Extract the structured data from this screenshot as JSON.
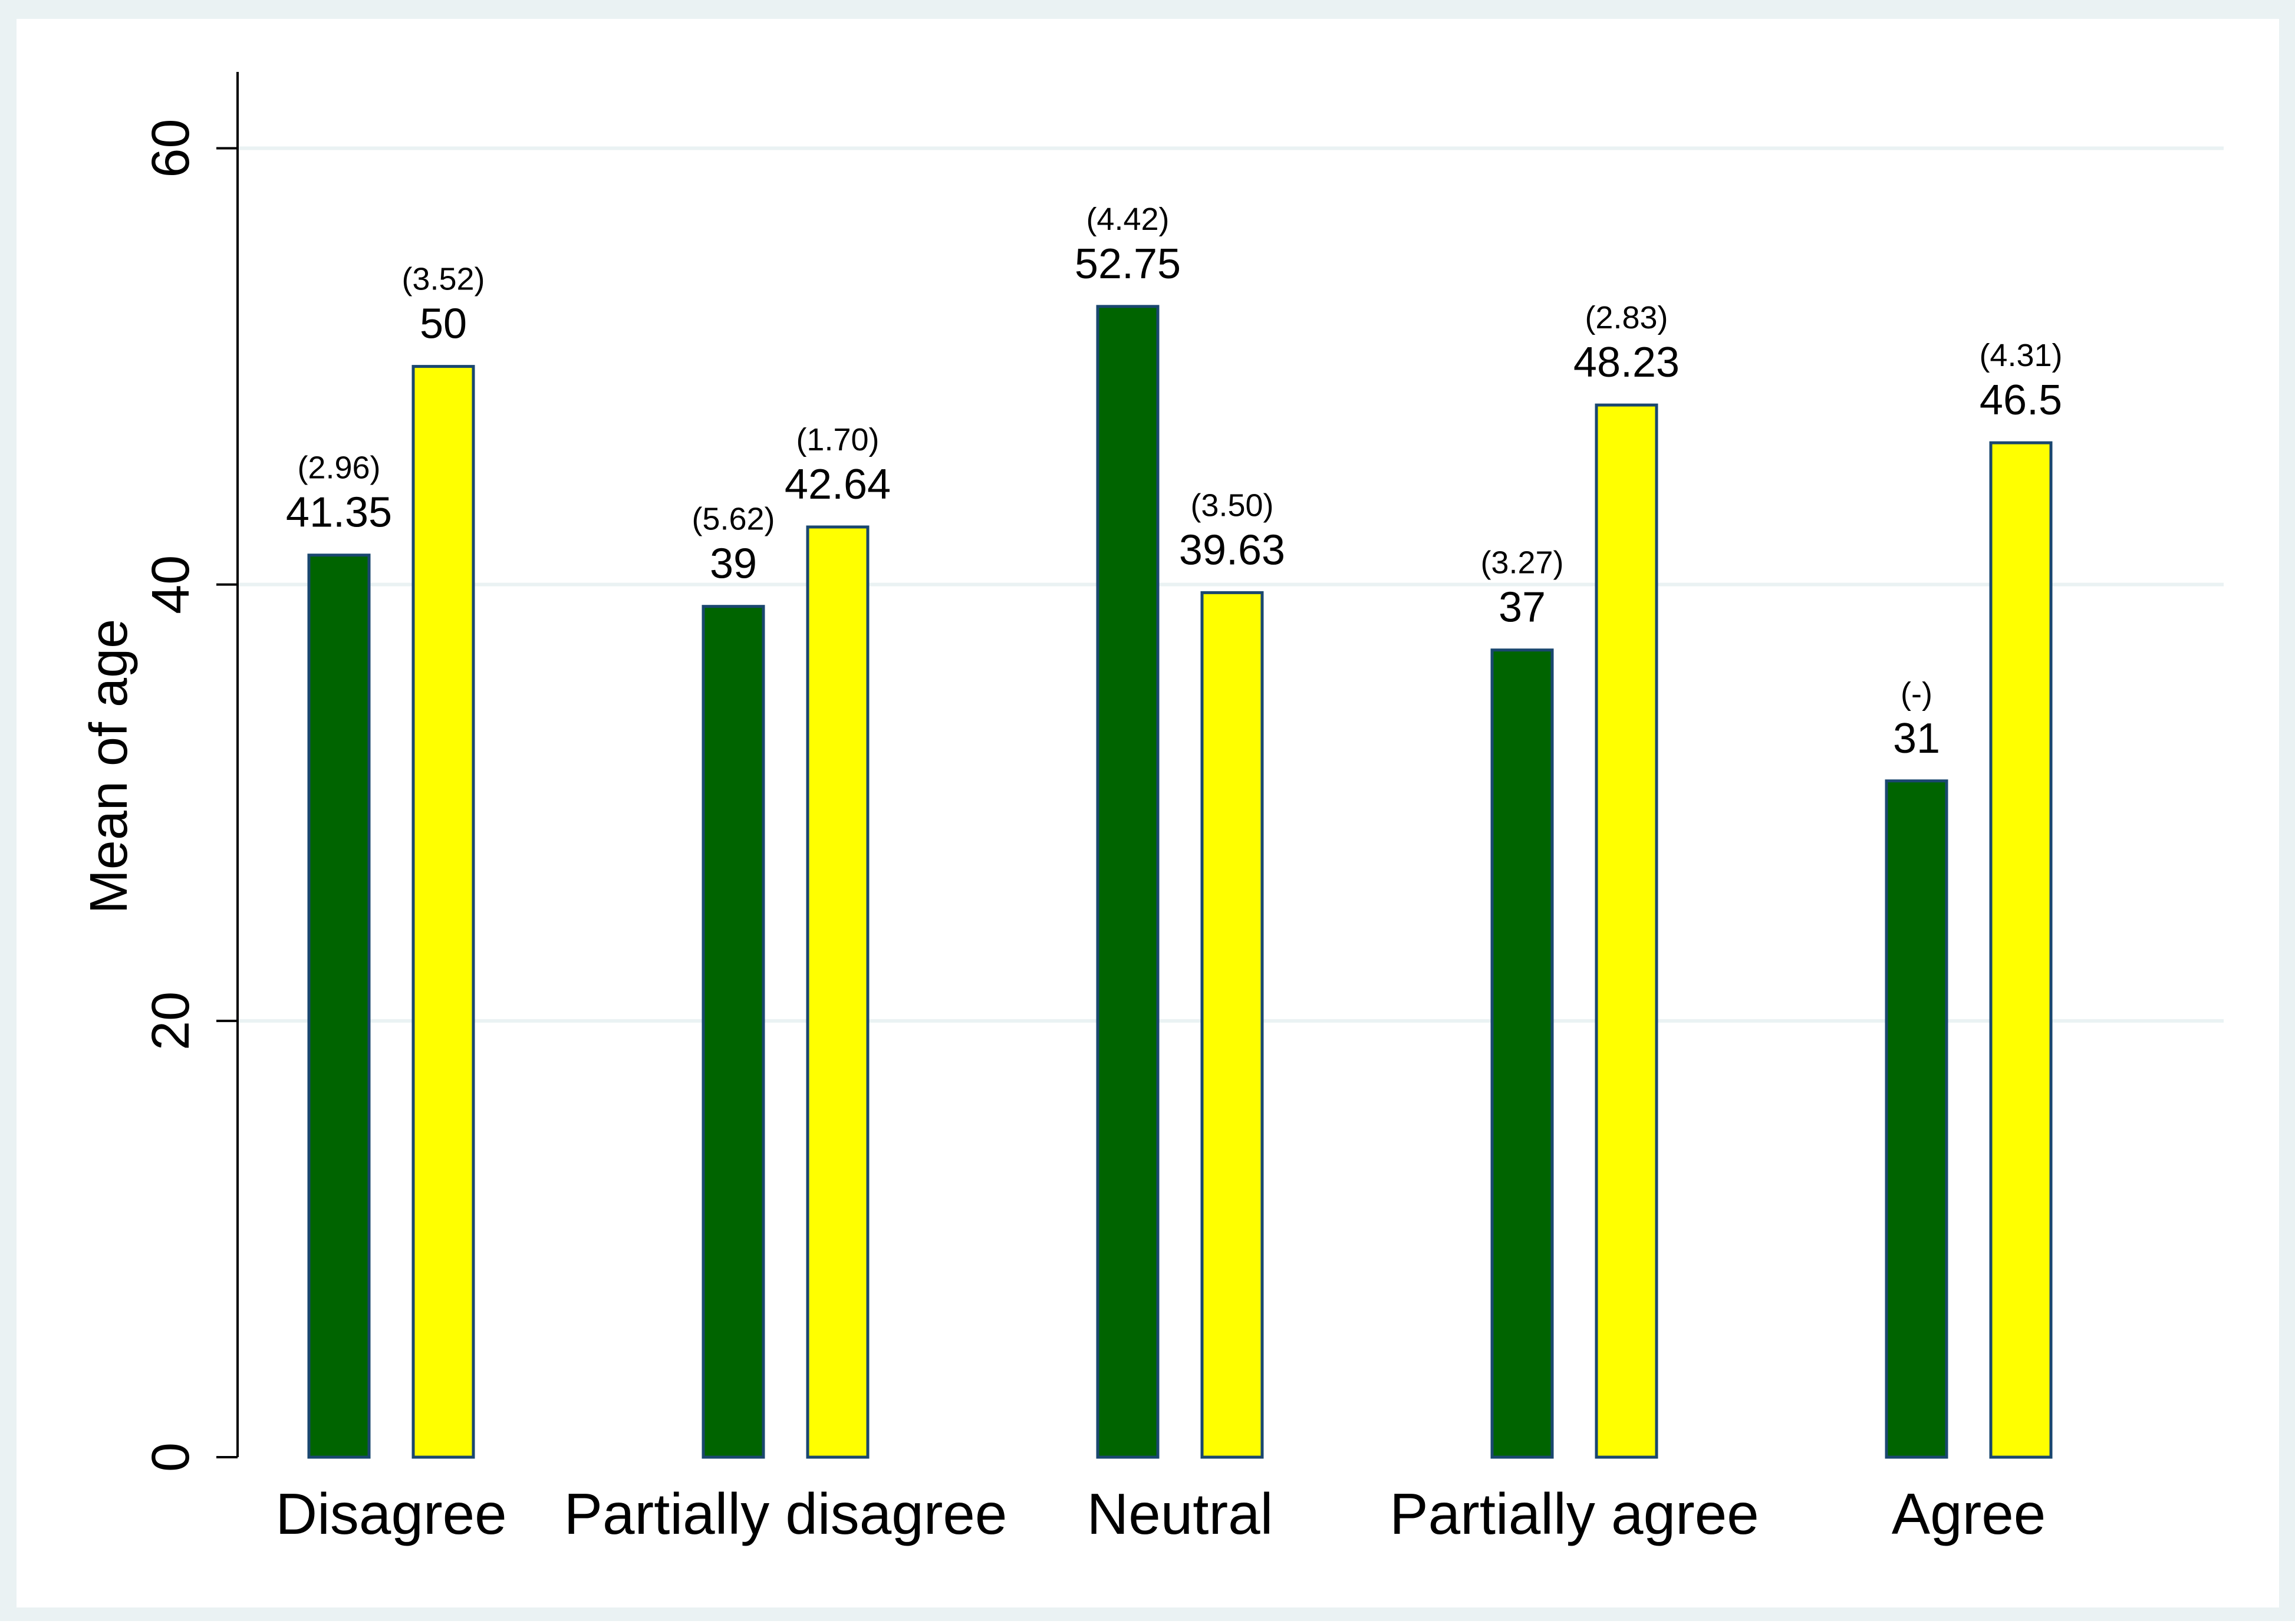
{
  "chart_data": {
    "type": "bar",
    "title": "",
    "xlabel": "",
    "ylabel": "Mean of age",
    "ylim": [
      0,
      63.5
    ],
    "yticks": [
      0,
      20,
      40,
      60
    ],
    "grid": true,
    "legend": "none",
    "categories": [
      "Disagree",
      "Partially disagree",
      "Neutral",
      "Partially agree",
      "Agree"
    ],
    "series": [
      {
        "name": "Series 1",
        "color": "#006400",
        "values": [
          41.35,
          39,
          52.75,
          37,
          31
        ],
        "value_labels": [
          "41.35",
          "39",
          "52.75",
          "37",
          "31"
        ],
        "sd_labels": [
          "(2.96)",
          "(5.62)",
          "(4.42)",
          "(3.27)",
          "(-)"
        ]
      },
      {
        "name": "Series 2",
        "color": "#FFFF00",
        "values": [
          50,
          42.64,
          39.63,
          48.23,
          46.5
        ],
        "value_labels": [
          "50",
          "42.64",
          "39.63",
          "48.23",
          "46.5"
        ],
        "sd_labels": [
          "(3.52)",
          "(1.70)",
          "(3.50)",
          "(2.83)",
          "(4.31)"
        ]
      }
    ]
  },
  "colors": {
    "frame": "#EAF2F3",
    "plot_background": "#FFFFFF",
    "gridline": "#EAF2F3",
    "bar_outline": "#1A476F"
  }
}
